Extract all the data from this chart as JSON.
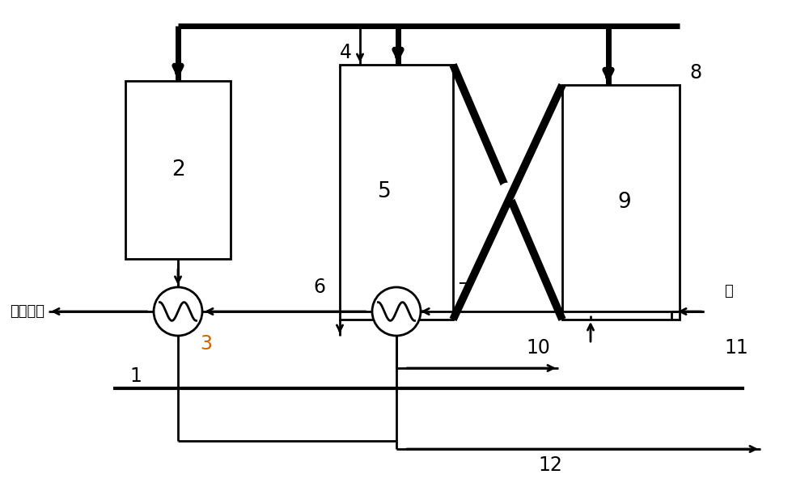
{
  "bg": "#ffffff",
  "lc": "#000000",
  "tlw": 2.0,
  "klw": 5.0,
  "steam_label": "高压蕊汽",
  "water_label": "水",
  "num3_color": "#cc6600"
}
